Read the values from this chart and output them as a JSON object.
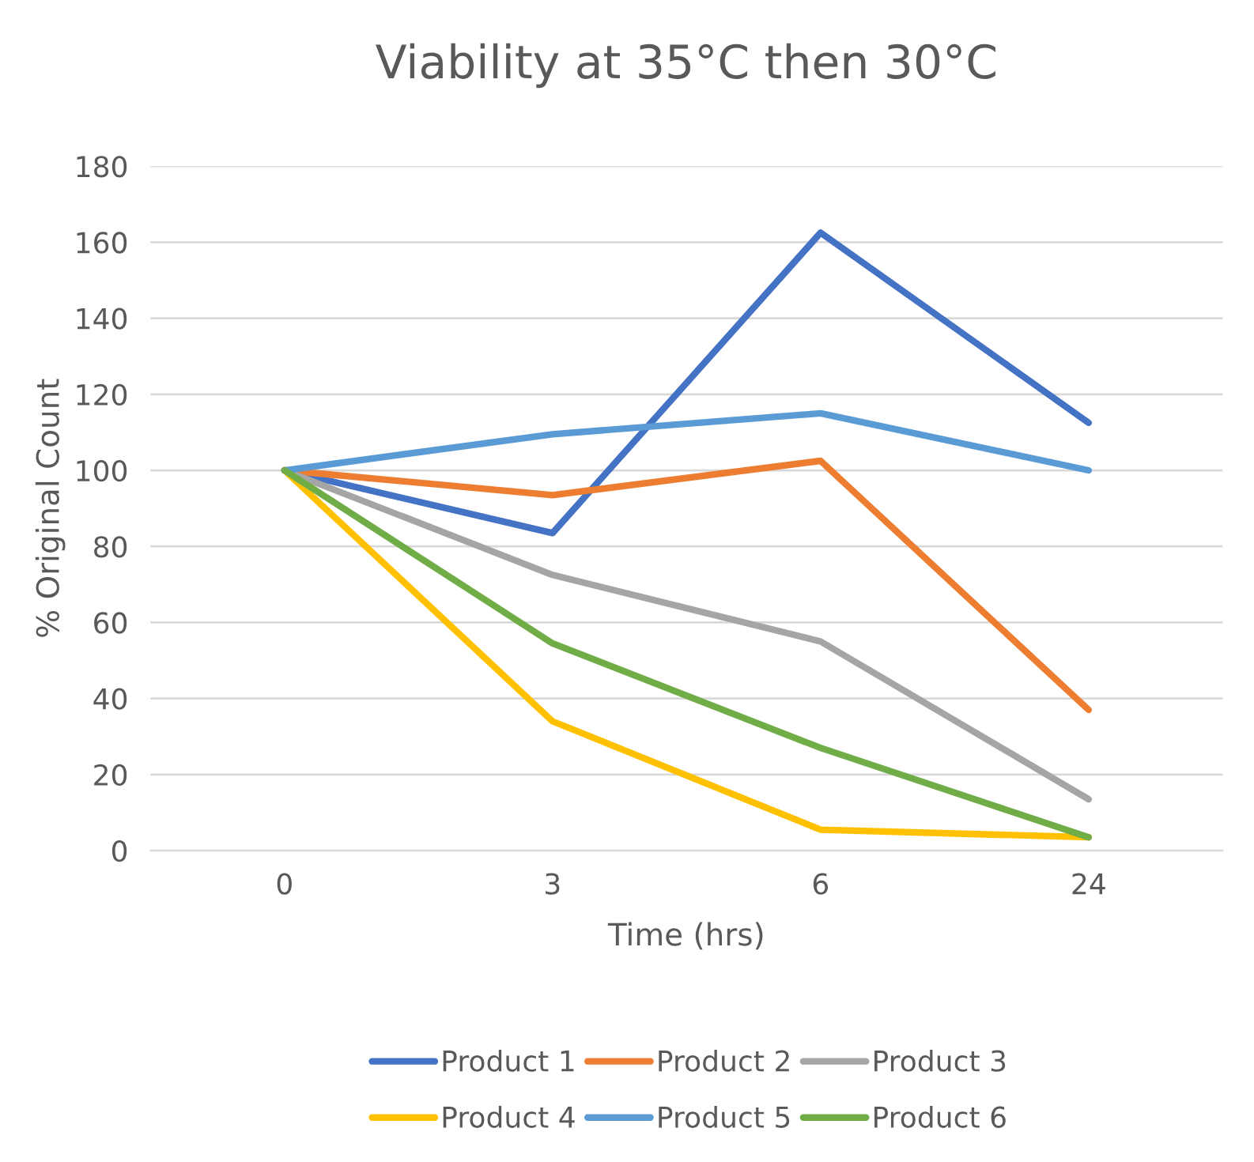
{
  "chart_data": {
    "type": "line",
    "title": "Viability at 35°C then 30°C",
    "xlabel": "Time (hrs)",
    "ylabel": "% Original Count",
    "categories": [
      "0",
      "3",
      "6",
      "24"
    ],
    "series": [
      {
        "name": "Product 1",
        "color": "#4472c4",
        "values": [
          100,
          83.5,
          162.5,
          112.5
        ]
      },
      {
        "name": "Product 2",
        "color": "#ed7d31",
        "values": [
          100,
          93.5,
          102.5,
          37
        ]
      },
      {
        "name": "Product 3",
        "color": "#a5a5a5",
        "values": [
          100,
          72.5,
          55,
          13.5
        ]
      },
      {
        "name": "Product 4",
        "color": "#ffc000",
        "values": [
          100,
          34,
          5.5,
          3.5
        ]
      },
      {
        "name": "Product 5",
        "color": "#5b9bd5",
        "values": [
          100,
          109.5,
          115,
          100
        ]
      },
      {
        "name": "Product 6",
        "color": "#70ad47",
        "values": [
          100,
          54.5,
          27,
          3.5
        ]
      }
    ],
    "ylim": [
      0,
      180
    ],
    "yticks": [
      0,
      20,
      40,
      60,
      80,
      100,
      120,
      140,
      160,
      180
    ],
    "grid": "y",
    "legend": "bottom",
    "marker": "none",
    "line_style": "solid"
  }
}
